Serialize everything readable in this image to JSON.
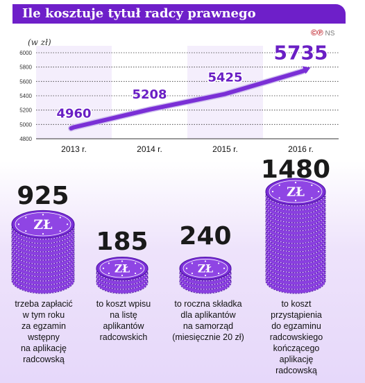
{
  "title": "Ile kosztuje tytuł radcy prawnego",
  "badge": {
    "copyright": "©",
    "p": "℗",
    "ns": "NS"
  },
  "unit": "(w zł)",
  "colors": {
    "accent": "#6e1fc9",
    "line": "#7a2fd6"
  },
  "chart_data": {
    "type": "line",
    "categories": [
      "2013 r.",
      "2014 r.",
      "2015 r.",
      "2016 r."
    ],
    "values": [
      4960,
      5208,
      5425,
      5735
    ],
    "value_labels": [
      "4960",
      "5208",
      "5425",
      "5735"
    ],
    "y_ticks": [
      "6000",
      "5800",
      "5600",
      "5400",
      "5200",
      "5000",
      "4800"
    ],
    "ylim": [
      4800,
      6000
    ],
    "ylabel": "(w zł)"
  },
  "coins": [
    {
      "amount": "925",
      "symbol": "ZŁ",
      "description": "trzeba zapłacić\nw tym roku\nza egzamin\nwstępny\nna aplikację\nradcowską"
    },
    {
      "amount": "185",
      "symbol": "ZŁ",
      "description": "to koszt wpisu\nna listę\naplikantów\nradcowskich"
    },
    {
      "amount": "240",
      "symbol": "ZŁ",
      "description": "to roczna składka\ndla aplikantów\nna samorząd\n(miesięcznie 20 zł)"
    },
    {
      "amount": "1480",
      "symbol": "ZŁ",
      "description": "to koszt\nprzystąpienia\ndo egzaminu\nradcowskiego\nkończącego\naplikację\nradcowską"
    }
  ]
}
